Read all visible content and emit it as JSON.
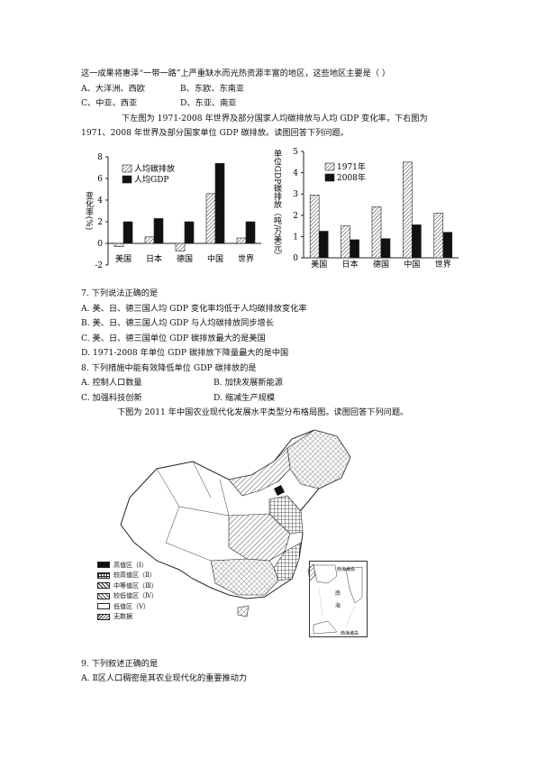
{
  "q6": {
    "stem": "这一成果将惠泽“一带一路”上严重缺水而光热资源丰富的地区，这些地区主要是（      ）",
    "options": [
      "A、大洋洲、西欧",
      "B、东欧、东南亚",
      "C、中亚、西亚",
      "D、东亚、南亚"
    ]
  },
  "intro1": {
    "line1": "下左图为 1971-2008 年世界及部分国家人均碳排放与人均 GDP 变化率，下右图为",
    "line2": "1971、2008 年世界及部分国家单位 GDP 碳排放。读图回答下列问题。"
  },
  "chart_data": [
    {
      "type": "bar",
      "ylabel": "变化率(%)",
      "ylim": [
        -2,
        8
      ],
      "yticks": [
        "8",
        "6",
        "4",
        "2",
        "0",
        "-2"
      ],
      "categories": [
        "美国",
        "日本",
        "德国",
        "中国",
        "世界"
      ],
      "series": [
        {
          "name": "人均碳排放",
          "values": [
            -0.3,
            0.6,
            -0.7,
            4.6,
            0.5
          ]
        },
        {
          "name": "人均GDP",
          "values": [
            2.0,
            2.3,
            2.0,
            7.4,
            2.0
          ]
        }
      ],
      "legend_position": "top-left"
    },
    {
      "type": "bar",
      "ylabel": "单位GDP碳排放（吨/万美元）",
      "ylim": [
        0,
        5
      ],
      "yticks": [
        "5",
        "4",
        "3",
        "2",
        "1",
        "0"
      ],
      "categories": [
        "美国",
        "日本",
        "德国",
        "中国",
        "世界"
      ],
      "series": [
        {
          "name": "1971年",
          "values": [
            2.95,
            1.5,
            2.4,
            4.5,
            2.1
          ]
        },
        {
          "name": "2008年",
          "values": [
            1.25,
            0.85,
            0.9,
            1.55,
            1.2
          ]
        }
      ],
      "legend_position": "top-left"
    }
  ],
  "q7": {
    "stem": "7. 下列说法正确的是",
    "options": [
      "A. 美、日、德三国人均 GDP 变化率均低于人均碳排放变化率",
      "B. 美、日、德三国人均 GDP 与人均碳排放同步增长",
      "C. 美、日、德三国单位 GDP 碳排放最大的是美国",
      "D. 1971-2008 年单位 GDP 碳排放下降量最大的是中国"
    ]
  },
  "q8": {
    "stem": "8. 下列措施中能有效降低单位 GDP 碳排放的是",
    "optA": "A. 控制人口数量",
    "optB": "B. 加快发展新能源",
    "optC": "C. 加强科技创新",
    "optD": "D. 缩减生产规模"
  },
  "intro2": "下图为 2011 年中国农业现代化发展水平类型分布格局图。读图回答下列问题。",
  "map_legend": [
    "高值区（Ⅰ）",
    "较高值区（Ⅱ）",
    "中等值区（Ⅲ）",
    "较低值区（Ⅳ）",
    "低值区（Ⅴ）",
    "无数据"
  ],
  "inset": {
    "label_top": "南海诸岛",
    "label_sea1": "南",
    "label_sea2": "海",
    "label_bottom": "南海诸岛"
  },
  "q9": {
    "stem": "9. 下列叙述正确的是",
    "optA": "A. Ⅱ区人口稠密是其农业现代化的重要推动力"
  }
}
